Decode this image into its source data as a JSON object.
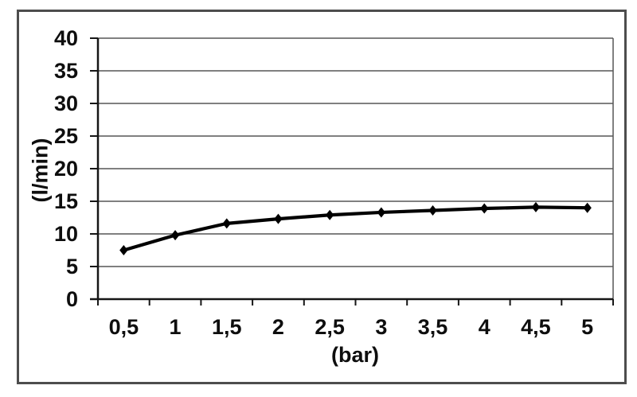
{
  "chart_data": {
    "type": "line",
    "x": [
      0.5,
      1,
      1.5,
      2,
      2.5,
      3,
      3.5,
      4,
      4.5,
      5
    ],
    "x_tick_labels": [
      "0,5",
      "1",
      "1,5",
      "2",
      "2,5",
      "3",
      "3,5",
      "4",
      "4,5",
      "5"
    ],
    "series": [
      {
        "values": [
          7.5,
          9.8,
          11.6,
          12.3,
          12.9,
          13.3,
          13.6,
          13.9,
          14.1,
          14.0
        ]
      }
    ],
    "title": "",
    "xlabel": "(bar)",
    "ylabel": "(l/min)",
    "ylim": [
      0,
      40
    ],
    "y_ticks": [
      0,
      5,
      10,
      15,
      20,
      25,
      30,
      35,
      40
    ],
    "y_tick_labels": [
      "0",
      "5",
      "10",
      "15",
      "20",
      "25",
      "30",
      "35",
      "40"
    ],
    "grid": true,
    "legend": false,
    "marker": "diamond",
    "colors": {
      "line": "#000000",
      "grid": "#575757",
      "axis": "#161616",
      "border": "#4d4d4d",
      "text": "#0e0e0e",
      "background": "#ffffff"
    }
  }
}
